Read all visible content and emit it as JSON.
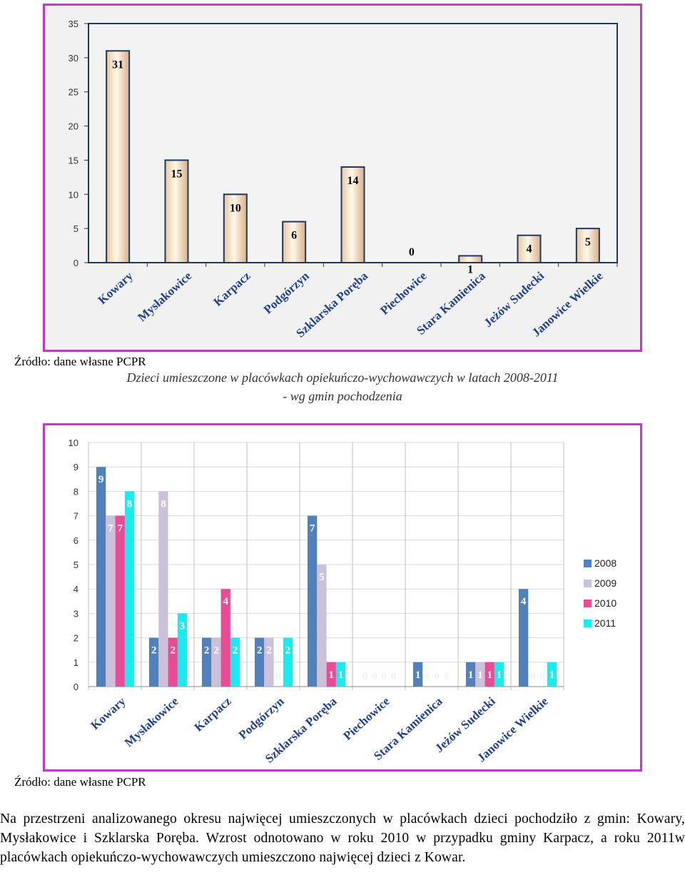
{
  "chart_data": [
    {
      "type": "bar",
      "title": "",
      "xlabel": "",
      "ylabel": "",
      "ylim": [
        0,
        35
      ],
      "yticks": [
        0,
        5,
        10,
        15,
        20,
        25,
        30,
        35
      ],
      "categories": [
        "Kowary",
        "Mysłakowice",
        "Karpacz",
        "Podgórzyn",
        "Szklarska Poręba",
        "Piechowice",
        "Stara Kamienica",
        "Jeżów Sudecki",
        "Janowice Wielkie"
      ],
      "values": [
        31,
        15,
        10,
        6,
        14,
        0,
        1,
        4,
        5
      ],
      "labels": [
        "31",
        "15",
        "10",
        "6",
        "14",
        "0",
        "1",
        "4",
        "5"
      ],
      "grid": false
    },
    {
      "type": "bar",
      "title": "",
      "xlabel": "",
      "ylabel": "",
      "ylim": [
        0,
        10
      ],
      "yticks": [
        0,
        1,
        2,
        3,
        4,
        5,
        6,
        7,
        8,
        9,
        10
      ],
      "legend_position": "right",
      "categories": [
        "Kowary",
        "Mysłakowice",
        "Karpacz",
        "Podgórzyn",
        "Szklarska Poręba",
        "Piechowice",
        "Stara Kamienica",
        "Jeżów Sudecki",
        "Janowice Wielkie"
      ],
      "series": [
        {
          "name": "2008",
          "color": "#4f81bd",
          "values": [
            9,
            2,
            2,
            2,
            7,
            0,
            1,
            1,
            4
          ]
        },
        {
          "name": "2009",
          "color": "#ccc1da",
          "values": [
            7,
            8,
            2,
            2,
            5,
            0,
            0,
            1,
            0
          ]
        },
        {
          "name": "2010",
          "color": "#e84c94",
          "values": [
            7,
            2,
            4,
            0,
            1,
            0,
            0,
            1,
            0
          ]
        },
        {
          "name": "2011",
          "color": "#19ecf0",
          "values": [
            8,
            3,
            2,
            2,
            1,
            0,
            0,
            1,
            1
          ]
        }
      ],
      "grid": true
    }
  ],
  "texts": {
    "source1": "Źródło: dane własne PCPR",
    "caption_line1": "Dzieci umieszczone  w placówkach opiekuńczo-wychowawczych  w latach 2008-2011",
    "caption_line2": "- wg gmin pochodzenia",
    "source2": "Źródło: dane własne PCPR",
    "paragraph": "Na przestrzeni analizowanego okresu najwięcej umieszczonych w placówkach dzieci pochodziło z gmin: Kowary, Mysłakowice i Szklarska Poręba. Wzrost odnotowano w roku 2010 w przypadku gminy Karpacz, a roku 2011w placówkach opiekuńczo-wychowawczych umieszczono najwięcej dzieci z Kowar."
  }
}
